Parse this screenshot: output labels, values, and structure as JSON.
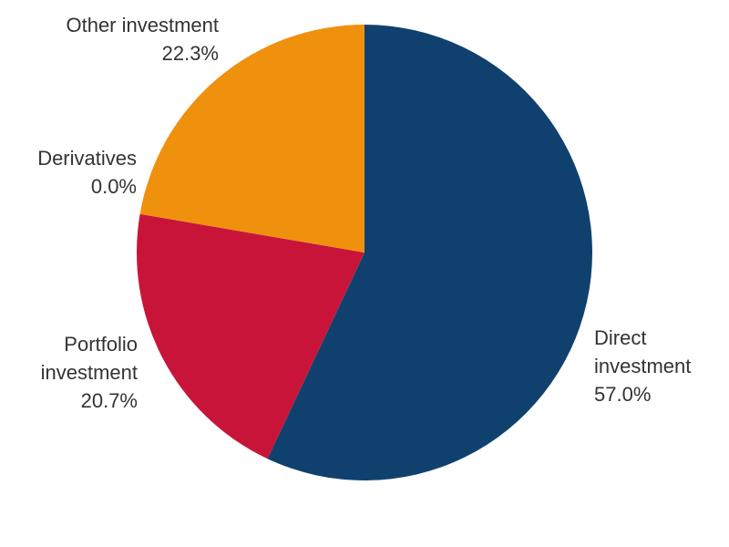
{
  "chart_data": {
    "type": "pie",
    "title": "",
    "start_angle_deg": 0,
    "direction": "clockwise",
    "slices": [
      {
        "label": "Direct investment",
        "label_lines": [
          "Direct",
          "investment"
        ],
        "value": 57.0,
        "value_label": "57.0%",
        "color": "#10416E"
      },
      {
        "label": "Portfolio investment",
        "label_lines": [
          "Portfolio",
          "investment"
        ],
        "value": 20.7,
        "value_label": "20.7%",
        "color": "#C9143A"
      },
      {
        "label": "Derivatives",
        "label_lines": [
          "Derivatives"
        ],
        "value": 0.0,
        "value_label": "0.0%",
        "color": "#7A1F5C"
      },
      {
        "label": "Other investment",
        "label_lines": [
          "Other investment"
        ],
        "value": 22.3,
        "value_label": "22.3%",
        "color": "#F0910E"
      }
    ]
  }
}
